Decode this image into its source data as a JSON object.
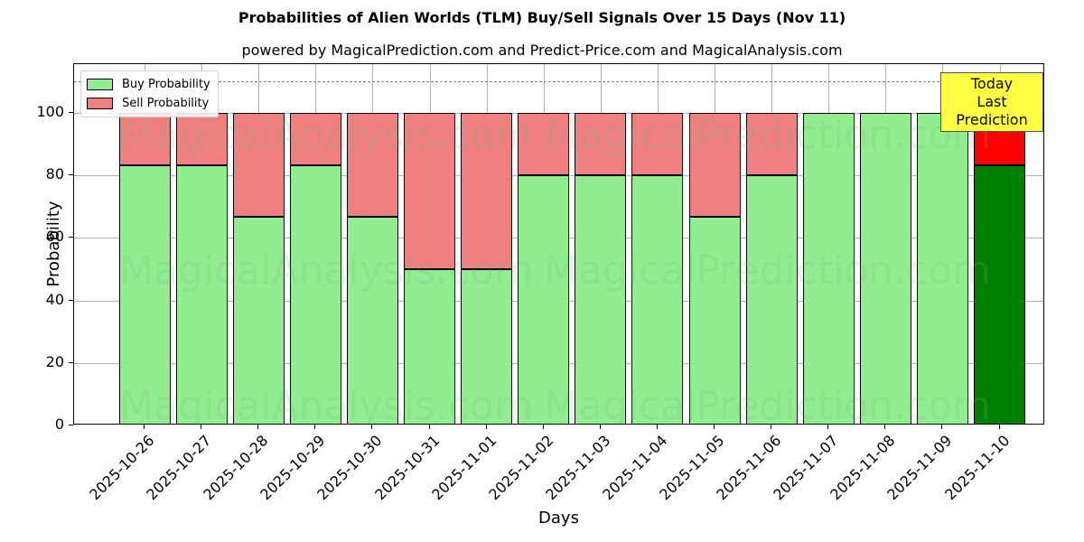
{
  "chart_data": {
    "type": "bar",
    "stacked": true,
    "title": "Probabilities of Alien Worlds (TLM) Buy/Sell Signals Over 15 Days (Nov 11)",
    "subtitle": "powered by MagicalPrediction.com and Predict-Price.com and MagicalAnalysis.com",
    "xlabel": "Days",
    "ylabel": "Probability",
    "ylim": [
      0,
      115
    ],
    "yticks": [
      0,
      20,
      40,
      60,
      80,
      100
    ],
    "grid": true,
    "reference_line": {
      "y": 110,
      "style": "dashed",
      "color": "#808080"
    },
    "categories": [
      "2025-10-26",
      "2025-10-27",
      "2025-10-28",
      "2025-10-29",
      "2025-10-30",
      "2025-10-31",
      "2025-11-01",
      "2025-11-02",
      "2025-11-03",
      "2025-11-04",
      "2025-11-05",
      "2025-11-06",
      "2025-11-07",
      "2025-11-08",
      "2025-11-09",
      "2025-11-10"
    ],
    "series": [
      {
        "name": "Buy Probability",
        "color": "#90ee90",
        "values": [
          83.33,
          83.33,
          66.67,
          83.33,
          66.67,
          50,
          50,
          80,
          80,
          80,
          66.67,
          80,
          100,
          100,
          100,
          83.33
        ]
      },
      {
        "name": "Sell Probability",
        "color": "#f08080",
        "values": [
          16.67,
          16.67,
          33.33,
          16.67,
          33.33,
          50,
          50,
          20,
          20,
          20,
          33.33,
          20,
          0,
          0,
          0,
          16.67
        ]
      }
    ],
    "highlight": {
      "index": 15,
      "buy_color": "#008000",
      "sell_color": "#ff0000"
    },
    "legend": {
      "position": "upper left",
      "entries": [
        "Buy Probability",
        "Sell Probability"
      ]
    },
    "annotation": {
      "text_line1": "Today",
      "text_line2": "Last Prediction",
      "background": "#ffff44"
    },
    "watermarks": [
      "MagicalAnalysis.com",
      "MagicalPrediction.com"
    ]
  }
}
